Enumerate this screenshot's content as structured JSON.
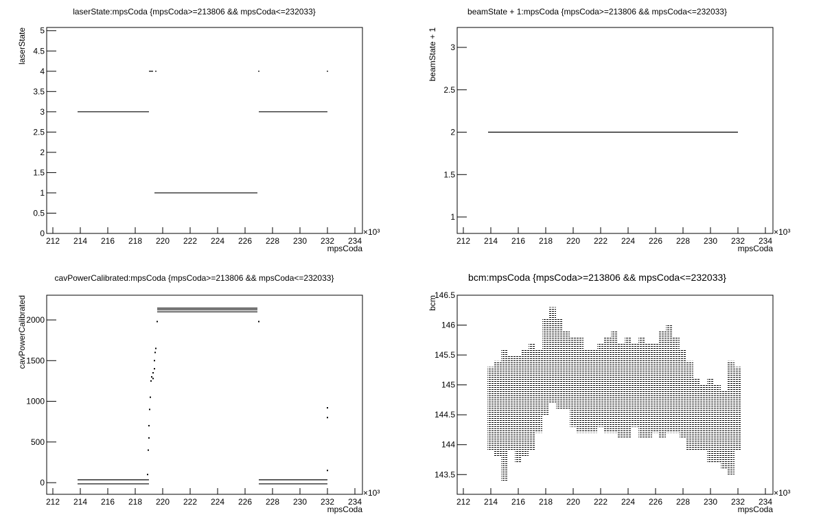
{
  "chart_data": [
    {
      "type": "line",
      "title": "laserState:mpsCoda {mpsCoda>=213806 && mpsCoda<=232033}",
      "x_label": "mpsCoda",
      "y_label": "laserState",
      "x_multiplier": "×10³",
      "xlim": [
        211.55,
        234.55
      ],
      "ylim": [
        0,
        5.08
      ],
      "xticks": [
        212,
        214,
        216,
        218,
        220,
        222,
        224,
        226,
        228,
        230,
        232,
        234
      ],
      "yticks": [
        0,
        0.5,
        1,
        1.5,
        2,
        2.5,
        3,
        3.5,
        4,
        4.5,
        5
      ],
      "series": [
        {
          "color": "#000000",
          "x": [
            213.8,
            219.0,
            null,
            219.0,
            219.3,
            null,
            219.45,
            219.55,
            null,
            219.4,
            226.9,
            null,
            226.95,
            227.05,
            null,
            227.0,
            232.0,
            null,
            231.95,
            232.05
          ],
          "values": [
            3,
            3,
            null,
            4,
            4,
            null,
            4,
            4,
            null,
            1,
            1,
            null,
            4,
            4,
            null,
            3,
            3,
            null,
            4,
            4
          ]
        }
      ]
    },
    {
      "type": "line",
      "title": "beamState + 1:mpsCoda {mpsCoda>=213806 && mpsCoda<=232033}",
      "x_label": "mpsCoda",
      "y_label": "beamState + 1",
      "x_multiplier": "×10³",
      "xlim": [
        211.55,
        234.55
      ],
      "ylim": [
        0.806,
        3.235
      ],
      "xticks": [
        212,
        214,
        216,
        218,
        220,
        222,
        224,
        226,
        228,
        230,
        232,
        234
      ],
      "yticks": [
        1,
        1.5,
        2,
        2.5,
        3
      ],
      "series": [
        {
          "color": "#000000",
          "x": [
            213.8,
            232.0
          ],
          "values": [
            2,
            2
          ]
        }
      ]
    },
    {
      "type": "line",
      "title": "cavPowerCalibrated:mpsCoda {mpsCoda>=213806 && mpsCoda<=232033}",
      "x_label": "mpsCoda",
      "y_label": "cavPowerCalibrated",
      "x_multiplier": "×10³",
      "xlim": [
        211.55,
        234.55
      ],
      "ylim": [
        -143,
        2304
      ],
      "xticks": [
        212,
        214,
        216,
        218,
        220,
        222,
        224,
        226,
        228,
        230,
        232,
        234
      ],
      "yticks": [
        0,
        500,
        1000,
        1500,
        2000
      ],
      "series": [
        {
          "color": "#000000",
          "x": [
            213.8,
            219.0,
            null,
            213.8,
            219.0,
            null,
            219.6,
            226.9,
            null,
            219.6,
            226.9,
            null,
            219.6,
            226.9,
            null,
            227.0,
            232.0,
            null,
            227.0,
            232.0
          ],
          "values": [
            35,
            35,
            null,
            -15,
            -15,
            null,
            2145,
            2145,
            null,
            2125,
            2125,
            null,
            2100,
            2100,
            null,
            35,
            35,
            null,
            -15,
            -15
          ]
        },
        {
          "color": "#000000",
          "markers": true,
          "x": [
            218.9,
            218.95,
            219.0,
            219.0,
            219.05,
            219.1,
            219.15,
            219.2,
            219.3,
            219.3,
            219.4,
            219.4,
            219.45,
            219.5,
            219.6,
            227.0,
            232.0,
            232.0,
            232.0
          ],
          "values": [
            100,
            400,
            550,
            700,
            900,
            1050,
            1250,
            1300,
            1280,
            1350,
            1400,
            1500,
            1600,
            1650,
            1980,
            1980,
            150,
            800,
            920
          ]
        }
      ]
    },
    {
      "type": "range",
      "title": "bcm:mpsCoda {mpsCoda>=213806 && mpsCoda<=232033}",
      "x_label": "mpsCoda",
      "y_label": "bcm",
      "x_multiplier": "×10³",
      "xlim": [
        211.55,
        234.55
      ],
      "ylim": [
        143.17,
        146.5
      ],
      "xticks": [
        212,
        214,
        216,
        218,
        220,
        222,
        224,
        226,
        228,
        230,
        232,
        234
      ],
      "yticks": [
        143.5,
        144,
        144.5,
        145,
        145.5,
        146,
        146.5
      ],
      "color": "#000000",
      "x": [
        214,
        214.5,
        215,
        215.5,
        216,
        216.5,
        217,
        217.5,
        218,
        218.5,
        219,
        219.5,
        220,
        220.5,
        221,
        221.5,
        222,
        222.5,
        223,
        223.5,
        224,
        224.5,
        225,
        225.5,
        226,
        226.5,
        227,
        227.5,
        228,
        228.5,
        229,
        229.5,
        230,
        230.5,
        231,
        231.5,
        232
      ],
      "low": [
        143.9,
        143.8,
        143.4,
        143.9,
        143.7,
        143.8,
        143.9,
        144.2,
        144.5,
        144.7,
        144.6,
        144.6,
        144.3,
        144.2,
        144.2,
        144.2,
        144.3,
        144.2,
        144.2,
        144.1,
        144.1,
        144.3,
        144.1,
        144.1,
        144.2,
        144.1,
        144.2,
        144.2,
        144.1,
        143.9,
        143.9,
        143.9,
        143.7,
        143.7,
        143.6,
        143.5,
        143.9
      ],
      "high": [
        145.3,
        145.4,
        145.6,
        145.5,
        145.5,
        145.6,
        145.7,
        145.6,
        146.1,
        146.3,
        146.1,
        145.9,
        145.8,
        145.8,
        145.6,
        145.6,
        145.7,
        145.8,
        145.9,
        145.7,
        145.8,
        145.7,
        145.8,
        145.7,
        145.7,
        145.9,
        146.0,
        145.8,
        145.6,
        145.4,
        145.1,
        145.0,
        145.1,
        145.0,
        144.9,
        145.4,
        145.3
      ]
    }
  ]
}
